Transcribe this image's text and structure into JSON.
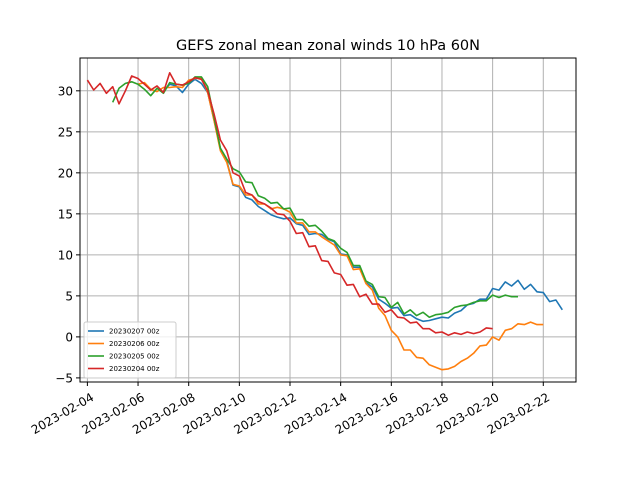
{
  "chart_data": {
    "type": "line",
    "title": "GEFS zonal mean zonal winds 10 hPa 60N",
    "xlabel": "",
    "ylabel": "",
    "x_axis": "date",
    "xlim": [
      "2023-02-03T17:00",
      "2023-02-23T07:00"
    ],
    "ylim": [
      -5.5,
      34
    ],
    "xticks": [
      "2023-02-04",
      "2023-02-06",
      "2023-02-08",
      "2023-02-10",
      "2023-02-12",
      "2023-02-14",
      "2023-02-16",
      "2023-02-18",
      "2023-02-20",
      "2023-02-22"
    ],
    "yticks": [
      -5,
      0,
      5,
      10,
      15,
      20,
      25,
      30
    ],
    "grid": true,
    "legend_position": "lower-left",
    "series": [
      {
        "name": "20230207 00z",
        "color": "#1f77b4",
        "x": [
          "2023-02-07T00:00",
          "2023-02-07T06:00",
          "2023-02-07T12:00",
          "2023-02-07T18:00",
          "2023-02-08T00:00",
          "2023-02-08T06:00",
          "2023-02-08T12:00",
          "2023-02-08T18:00",
          "2023-02-09T00:00",
          "2023-02-09T06:00",
          "2023-02-09T12:00",
          "2023-02-09T18:00",
          "2023-02-10T00:00",
          "2023-02-10T06:00",
          "2023-02-10T12:00",
          "2023-02-10T18:00",
          "2023-02-11T00:00",
          "2023-02-11T06:00",
          "2023-02-11T12:00",
          "2023-02-11T18:00",
          "2023-02-12T00:00",
          "2023-02-12T06:00",
          "2023-02-12T12:00",
          "2023-02-12T18:00",
          "2023-02-13T00:00",
          "2023-02-13T06:00",
          "2023-02-13T12:00",
          "2023-02-13T18:00",
          "2023-02-14T00:00",
          "2023-02-14T06:00",
          "2023-02-14T12:00",
          "2023-02-14T18:00",
          "2023-02-15T00:00",
          "2023-02-15T06:00",
          "2023-02-15T12:00",
          "2023-02-15T18:00",
          "2023-02-16T00:00",
          "2023-02-16T06:00",
          "2023-02-16T12:00",
          "2023-02-16T18:00",
          "2023-02-17T00:00",
          "2023-02-17T06:00",
          "2023-02-17T12:00",
          "2023-02-17T18:00",
          "2023-02-18T00:00",
          "2023-02-18T06:00",
          "2023-02-18T12:00",
          "2023-02-18T18:00",
          "2023-02-19T00:00",
          "2023-02-19T06:00",
          "2023-02-19T12:00",
          "2023-02-19T18:00",
          "2023-02-20T00:00",
          "2023-02-20T06:00",
          "2023-02-20T12:00",
          "2023-02-20T18:00",
          "2023-02-21T00:00",
          "2023-02-21T06:00",
          "2023-02-21T12:00",
          "2023-02-21T18:00",
          "2023-02-22T00:00",
          "2023-02-22T06:00",
          "2023-02-22T12:00",
          "2023-02-22T18:00"
        ],
        "values": [
          29.9,
          30.8,
          30.6,
          29.8,
          30.8,
          31.4,
          30.9,
          29.8,
          26.5,
          22.9,
          21.5,
          18.5,
          18.3,
          17.0,
          16.7,
          15.9,
          15.4,
          14.9,
          14.6,
          14.4,
          14.5,
          13.8,
          13.6,
          12.5,
          12.6,
          12.5,
          11.9,
          11.6,
          10.1,
          10.0,
          8.5,
          8.5,
          6.6,
          6.1,
          4.6,
          4.1,
          3.5,
          3.6,
          2.6,
          2.7,
          2.2,
          1.9,
          2.0,
          2.2,
          2.4,
          2.3,
          2.9,
          3.2,
          3.9,
          4.1,
          4.6,
          4.6,
          5.9,
          5.7,
          6.7,
          6.2,
          6.9,
          5.8,
          6.4,
          5.5,
          5.4,
          4.3,
          4.5,
          3.3
        ]
      },
      {
        "name": "20230206 00z",
        "color": "#ff7f0e",
        "x": [
          "2023-02-06T00:00",
          "2023-02-06T06:00",
          "2023-02-06T12:00",
          "2023-02-06T18:00",
          "2023-02-07T00:00",
          "2023-02-07T06:00",
          "2023-02-07T12:00",
          "2023-02-07T18:00",
          "2023-02-08T00:00",
          "2023-02-08T06:00",
          "2023-02-08T12:00",
          "2023-02-08T18:00",
          "2023-02-09T00:00",
          "2023-02-09T06:00",
          "2023-02-09T12:00",
          "2023-02-09T18:00",
          "2023-02-10T00:00",
          "2023-02-10T06:00",
          "2023-02-10T12:00",
          "2023-02-10T18:00",
          "2023-02-11T00:00",
          "2023-02-11T06:00",
          "2023-02-11T12:00",
          "2023-02-11T18:00",
          "2023-02-12T00:00",
          "2023-02-12T06:00",
          "2023-02-12T12:00",
          "2023-02-12T18:00",
          "2023-02-13T00:00",
          "2023-02-13T06:00",
          "2023-02-13T12:00",
          "2023-02-13T18:00",
          "2023-02-14T00:00",
          "2023-02-14T06:00",
          "2023-02-14T12:00",
          "2023-02-14T18:00",
          "2023-02-15T00:00",
          "2023-02-15T06:00",
          "2023-02-15T12:00",
          "2023-02-15T18:00",
          "2023-02-16T00:00",
          "2023-02-16T06:00",
          "2023-02-16T12:00",
          "2023-02-16T18:00",
          "2023-02-17T00:00",
          "2023-02-17T06:00",
          "2023-02-17T12:00",
          "2023-02-17T18:00",
          "2023-02-18T00:00",
          "2023-02-18T06:00",
          "2023-02-18T12:00",
          "2023-02-18T18:00",
          "2023-02-19T00:00",
          "2023-02-19T06:00",
          "2023-02-19T12:00",
          "2023-02-19T18:00",
          "2023-02-20T00:00",
          "2023-02-20T06:00",
          "2023-02-20T12:00",
          "2023-02-20T18:00",
          "2023-02-21T00:00",
          "2023-02-21T06:00",
          "2023-02-21T12:00",
          "2023-02-21T18:00",
          "2023-02-22T00:00"
        ],
        "values": [
          30.8,
          31.0,
          30.2,
          29.9,
          30.4,
          30.4,
          30.5,
          30.4,
          31.3,
          31.5,
          31.6,
          29.8,
          26.4,
          22.7,
          21.3,
          18.6,
          18.4,
          17.3,
          17.3,
          16.2,
          16.2,
          15.6,
          15.8,
          15.6,
          15.2,
          13.9,
          13.9,
          12.8,
          12.8,
          12.2,
          11.7,
          11.2,
          10.0,
          9.9,
          8.2,
          8.3,
          6.5,
          5.7,
          3.5,
          2.6,
          0.8,
          0.0,
          -1.6,
          -1.6,
          -2.5,
          -2.6,
          -3.4,
          -3.7,
          -4.0,
          -3.9,
          -3.6,
          -3.0,
          -2.6,
          -2.0,
          -1.1,
          -1.0,
          0.0,
          -0.4,
          0.8,
          1.0,
          1.6,
          1.5,
          1.8,
          1.5,
          1.5
        ]
      },
      {
        "name": "20230205 00z",
        "color": "#2ca02c",
        "x": [
          "2023-02-05T00:00",
          "2023-02-05T06:00",
          "2023-02-05T12:00",
          "2023-02-05T18:00",
          "2023-02-06T00:00",
          "2023-02-06T06:00",
          "2023-02-06T12:00",
          "2023-02-06T18:00",
          "2023-02-07T00:00",
          "2023-02-07T06:00",
          "2023-02-07T12:00",
          "2023-02-07T18:00",
          "2023-02-08T00:00",
          "2023-02-08T06:00",
          "2023-02-08T12:00",
          "2023-02-08T18:00",
          "2023-02-09T00:00",
          "2023-02-09T06:00",
          "2023-02-09T12:00",
          "2023-02-09T18:00",
          "2023-02-10T00:00",
          "2023-02-10T06:00",
          "2023-02-10T12:00",
          "2023-02-10T18:00",
          "2023-02-11T00:00",
          "2023-02-11T06:00",
          "2023-02-11T12:00",
          "2023-02-11T18:00",
          "2023-02-12T00:00",
          "2023-02-12T06:00",
          "2023-02-12T12:00",
          "2023-02-12T18:00",
          "2023-02-13T00:00",
          "2023-02-13T06:00",
          "2023-02-13T12:00",
          "2023-02-13T18:00",
          "2023-02-14T00:00",
          "2023-02-14T06:00",
          "2023-02-14T12:00",
          "2023-02-14T18:00",
          "2023-02-15T00:00",
          "2023-02-15T06:00",
          "2023-02-15T12:00",
          "2023-02-15T18:00",
          "2023-02-16T00:00",
          "2023-02-16T06:00",
          "2023-02-16T12:00",
          "2023-02-16T18:00",
          "2023-02-17T00:00",
          "2023-02-17T06:00",
          "2023-02-17T12:00",
          "2023-02-17T18:00",
          "2023-02-18T00:00",
          "2023-02-18T06:00",
          "2023-02-18T12:00",
          "2023-02-18T18:00",
          "2023-02-19T00:00",
          "2023-02-19T06:00",
          "2023-02-19T12:00",
          "2023-02-19T18:00",
          "2023-02-20T00:00",
          "2023-02-20T06:00",
          "2023-02-20T12:00",
          "2023-02-20T18:00",
          "2023-02-21T00:00"
        ],
        "values": [
          28.6,
          30.3,
          30.9,
          31.1,
          30.8,
          30.2,
          29.4,
          30.3,
          29.7,
          31.0,
          30.8,
          30.7,
          30.9,
          31.7,
          31.7,
          30.5,
          26.8,
          23.0,
          21.7,
          20.5,
          20.1,
          18.9,
          18.8,
          17.2,
          16.9,
          16.3,
          16.4,
          15.6,
          15.7,
          14.3,
          14.3,
          13.5,
          13.6,
          12.9,
          12.0,
          11.7,
          10.8,
          10.3,
          8.7,
          8.7,
          6.8,
          6.4,
          4.9,
          4.8,
          3.6,
          4.2,
          2.8,
          3.3,
          2.6,
          3.0,
          2.4,
          2.7,
          2.8,
          3.0,
          3.6,
          3.8,
          3.9,
          4.2,
          4.4,
          4.4,
          5.1,
          4.8,
          5.1,
          4.9,
          4.9
        ]
      },
      {
        "name": "20230204 00z",
        "color": "#d62728",
        "x": [
          "2023-02-04T00:00",
          "2023-02-04T06:00",
          "2023-02-04T12:00",
          "2023-02-04T18:00",
          "2023-02-05T00:00",
          "2023-02-05T06:00",
          "2023-02-05T12:00",
          "2023-02-05T18:00",
          "2023-02-06T00:00",
          "2023-02-06T06:00",
          "2023-02-06T12:00",
          "2023-02-06T18:00",
          "2023-02-07T00:00",
          "2023-02-07T06:00",
          "2023-02-07T12:00",
          "2023-02-07T18:00",
          "2023-02-08T00:00",
          "2023-02-08T06:00",
          "2023-02-08T12:00",
          "2023-02-08T18:00",
          "2023-02-09T00:00",
          "2023-02-09T06:00",
          "2023-02-09T12:00",
          "2023-02-09T18:00",
          "2023-02-10T00:00",
          "2023-02-10T06:00",
          "2023-02-10T12:00",
          "2023-02-10T18:00",
          "2023-02-11T00:00",
          "2023-02-11T06:00",
          "2023-02-11T12:00",
          "2023-02-11T18:00",
          "2023-02-12T00:00",
          "2023-02-12T06:00",
          "2023-02-12T12:00",
          "2023-02-12T18:00",
          "2023-02-13T00:00",
          "2023-02-13T06:00",
          "2023-02-13T12:00",
          "2023-02-13T18:00",
          "2023-02-14T00:00",
          "2023-02-14T06:00",
          "2023-02-14T12:00",
          "2023-02-14T18:00",
          "2023-02-15T00:00",
          "2023-02-15T06:00",
          "2023-02-15T12:00",
          "2023-02-15T18:00",
          "2023-02-16T00:00",
          "2023-02-16T06:00",
          "2023-02-16T12:00",
          "2023-02-16T18:00",
          "2023-02-17T00:00",
          "2023-02-17T06:00",
          "2023-02-17T12:00",
          "2023-02-17T18:00",
          "2023-02-18T00:00",
          "2023-02-18T06:00",
          "2023-02-18T12:00",
          "2023-02-18T18:00",
          "2023-02-19T00:00",
          "2023-02-19T06:00",
          "2023-02-19T12:00",
          "2023-02-19T18:00",
          "2023-02-20T00:00"
        ],
        "values": [
          31.3,
          30.1,
          30.9,
          29.7,
          30.5,
          28.4,
          30.0,
          31.8,
          31.5,
          30.8,
          30.1,
          30.6,
          29.8,
          32.2,
          30.8,
          30.7,
          31.1,
          31.6,
          31.4,
          30.0,
          27.2,
          24.0,
          22.7,
          20.0,
          19.6,
          17.6,
          17.3,
          16.5,
          16.2,
          15.7,
          15.0,
          14.9,
          14.1,
          12.6,
          12.7,
          11.0,
          11.1,
          9.3,
          9.2,
          7.8,
          7.6,
          6.3,
          6.4,
          4.9,
          5.2,
          4.0,
          4.0,
          3.0,
          3.3,
          2.4,
          2.3,
          1.7,
          1.8,
          1.0,
          1.0,
          0.5,
          0.6,
          0.2,
          0.5,
          0.3,
          0.6,
          0.4,
          0.6,
          1.1,
          1.0
        ]
      }
    ]
  }
}
